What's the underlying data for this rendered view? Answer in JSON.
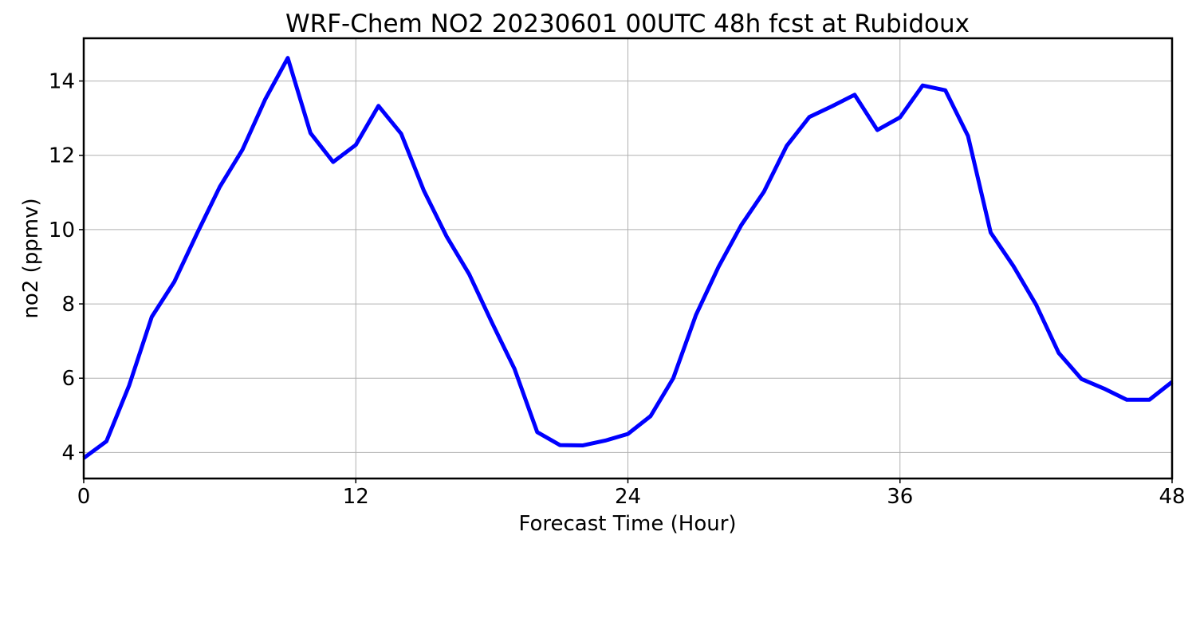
{
  "chart_data": {
    "type": "line",
    "title": "WRF-Chem NO2  20230601 00UTC 48h fcst at Rubidoux",
    "xlabel": "Forecast Time (Hour)",
    "ylabel": "no2  (ppmv)",
    "xlim": [
      0,
      48
    ],
    "ylim": [
      3.3,
      15.15
    ],
    "xticks": [
      0,
      12,
      24,
      36,
      48
    ],
    "xtick_labels": [
      "0",
      "12",
      "24",
      "36",
      "48"
    ],
    "yticks": [
      4,
      6,
      8,
      10,
      12,
      14
    ],
    "ytick_labels": [
      "4",
      "6",
      "8",
      "10",
      "12",
      "14"
    ],
    "grid": true,
    "colors": {
      "series": "#0000ff"
    },
    "x": [
      0,
      1,
      2,
      3,
      4,
      5,
      6,
      7,
      8,
      9,
      10,
      11,
      12,
      13,
      14,
      15,
      16,
      17,
      18,
      19,
      20,
      21,
      22,
      23,
      24,
      25,
      26,
      27,
      28,
      29,
      30,
      31,
      32,
      33,
      34,
      35,
      36,
      37,
      38,
      39,
      40,
      41,
      42,
      43,
      44,
      45,
      46,
      47,
      48
    ],
    "series": [
      {
        "values": [
          3.85,
          4.3,
          5.8,
          7.65,
          8.6,
          9.9,
          11.15,
          12.15,
          13.5,
          14.62,
          12.6,
          11.82,
          12.28,
          13.33,
          12.58,
          11.05,
          9.82,
          8.8,
          7.5,
          6.25,
          4.55,
          4.2,
          4.19,
          4.32,
          4.5,
          4.98,
          6.0,
          7.7,
          9.0,
          10.12,
          11.02,
          12.25,
          13.03,
          13.32,
          13.63,
          12.68,
          13.02,
          13.88,
          13.75,
          12.52,
          9.92,
          9.02,
          7.98,
          6.68,
          5.98,
          5.72,
          5.42,
          5.42,
          5.9
        ]
      }
    ]
  }
}
